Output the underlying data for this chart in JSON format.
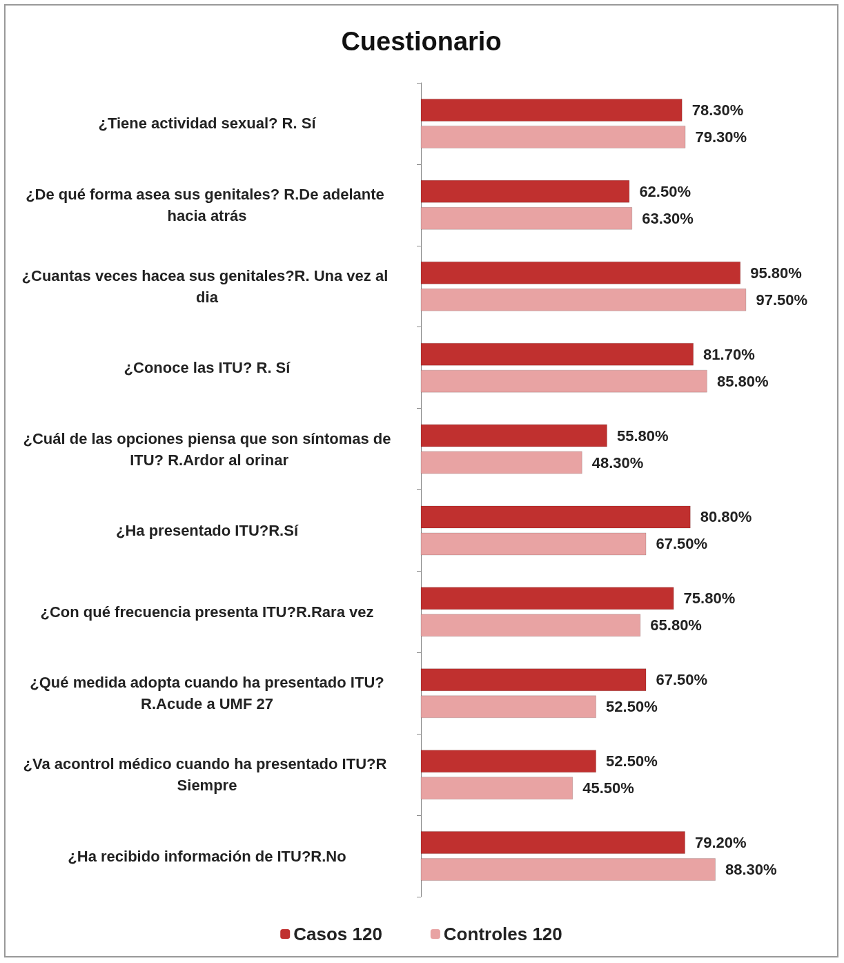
{
  "chart_data": {
    "type": "bar",
    "orientation": "horizontal",
    "title": "Cuestionario",
    "categories": [
      "¿Tiene actividad sexual? R. Sí",
      "¿De qué forma asea sus genitales? R.De adelante hacia atrás",
      "¿Cuantas veces hacea sus genitales?R. Una vez al dia",
      "¿Conoce las ITU? R. Sí",
      "¿Cuál de las opciones piensa que son síntomas de ITU? R.Ardor al orinar",
      "¿Ha presentado ITU?R.Sí",
      "¿Con qué frecuencia presenta ITU?R.Rara vez",
      "¿Qué medida adopta cuando ha presentado ITU?R.Acude a UMF 27",
      "¿Va acontrol médico cuando ha presentado ITU?R Siempre",
      "¿Ha recibido información de ITU?R.No"
    ],
    "series": [
      {
        "name": "Casos 120",
        "color": "#c0302f",
        "values": [
          78.3,
          62.5,
          95.8,
          81.7,
          55.8,
          80.8,
          75.8,
          67.5,
          52.5,
          79.2
        ],
        "value_labels": [
          "78.30%",
          "62.50%",
          "95.80%",
          "81.70%",
          "55.80%",
          "80.80%",
          "75.80%",
          "67.50%",
          "52.50%",
          "79.20%"
        ]
      },
      {
        "name": "Controles 120",
        "color": "#e8a3a3",
        "values": [
          79.3,
          63.3,
          97.5,
          85.8,
          48.3,
          67.5,
          65.8,
          52.5,
          45.5,
          88.3
        ],
        "value_labels": [
          "79.30%",
          "63.30%",
          "97.50%",
          "85.80%",
          "48.30%",
          "67.50%",
          "65.80%",
          "52.50%",
          "45.50%",
          "88.30%"
        ]
      }
    ],
    "legend": "bottom",
    "grid": false
  }
}
